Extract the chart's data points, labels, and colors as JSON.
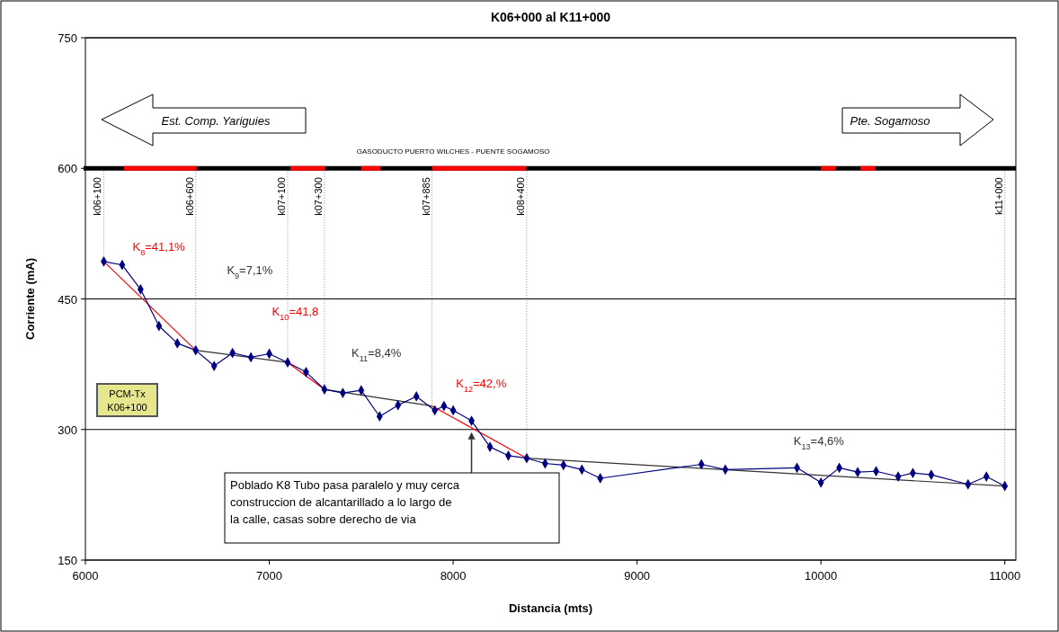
{
  "chart_data": {
    "type": "line",
    "title": "K06+000 al K11+000",
    "xlabel": "Distancia (mts)",
    "ylabel": "Corriente (mA)",
    "xlim": [
      6000,
      11060
    ],
    "xticks": [
      6000,
      7000,
      8000,
      9000,
      10000,
      11000
    ],
    "ylim": [
      150,
      750
    ],
    "yticks": [
      150,
      300,
      450,
      600,
      750
    ],
    "grid": "y",
    "marker": "diamond",
    "line_style": "solid",
    "series": [
      {
        "color": "#000080",
        "x": [
          6100,
          6200,
          6300,
          6400,
          6500,
          6600,
          6700,
          6800,
          6900,
          7000,
          7100,
          7200,
          7300,
          7400,
          7500,
          7600,
          7700,
          7800,
          7900,
          7950,
          8000,
          8100,
          8200,
          8300,
          8400,
          8500,
          8600,
          8700,
          8800,
          9350,
          9480,
          9870,
          10000,
          10100,
          10200,
          10300,
          10420,
          10500,
          10600,
          10800,
          10900,
          11000
        ],
        "values": [
          493,
          489,
          461,
          419,
          399,
          391,
          373,
          388,
          383,
          387,
          377,
          366,
          346,
          342,
          345,
          315,
          328,
          338,
          322,
          327,
          322,
          310,
          280,
          270,
          267,
          261,
          259,
          254,
          244,
          260,
          254,
          256,
          239,
          256,
          251,
          252,
          246,
          250,
          248,
          237,
          246,
          235
        ]
      },
      {
        "type": "line",
        "marker": "none",
        "color": "#ff0000",
        "x": [
          6100,
          6600,
          6850,
          7100,
          7300,
          7600,
          7885,
          8400
        ],
        "values": [
          493,
          391,
          null,
          377,
          346,
          null,
          327,
          267
        ]
      },
      {
        "type": "line",
        "marker": "none",
        "color": "#333333",
        "x": [
          6600,
          7100,
          7200,
          7300,
          7885,
          8100,
          8400,
          11000
        ],
        "values": [
          391,
          377,
          null,
          346,
          327,
          null,
          267,
          235
        ]
      },
      {
        "type": "line",
        "marker": "none",
        "color": "#ff0000",
        "x": [
          6210,
          6605,
          6660,
          7115,
          7305,
          7400,
          7500,
          7605,
          7700,
          7885,
          8395,
          9000,
          10000,
          10080,
          10150,
          10215,
          10295
        ],
        "values": [
          600,
          600,
          null,
          600,
          600,
          null,
          600,
          600,
          null,
          600,
          600,
          null,
          600,
          600,
          null,
          600,
          600
        ]
      }
    ],
    "ref_lines": [
      {
        "axis": "y",
        "value": 600,
        "label": "GASODUCTO PUERTO WILCHES - PUENTE SOGAMOSO",
        "color": "#000000"
      },
      {
        "axis": "x",
        "value": 6100,
        "label": "k06+100",
        "line_style": "dotted"
      },
      {
        "axis": "x",
        "value": 6600,
        "label": "k06+600",
        "line_style": "dotted"
      },
      {
        "axis": "x",
        "value": 7100,
        "label": "k07+100",
        "line_style": "dotted"
      },
      {
        "axis": "x",
        "value": 7300,
        "label": "k07+300",
        "line_style": "dotted"
      },
      {
        "axis": "x",
        "value": 7885,
        "label": "k07+885",
        "line_style": "dotted"
      },
      {
        "axis": "x",
        "value": 8400,
        "label": "k08+400",
        "line_style": "dotted"
      },
      {
        "axis": "x",
        "value": 11000,
        "label": "k11+000",
        "line_style": "dotted"
      }
    ],
    "annotations": [
      "Est. Comp. Yariguies",
      "Pte. Sogamoso",
      "PCM-Tx K06+100",
      "K$_{8}$=41,1%",
      "K$_{9}$=7,1%",
      "K$_{10}$=41,8",
      "K$_{11}$=8,4%",
      "K$_{12}$=42,%",
      "K$_{13}$=4,6%",
      {
        "text": "Poblado K8 Tubo pasa paralelo y muy cerca construccion de alcantarillado a lo largo de la calle, casas sobre derecho de via",
        "x": 8100,
        "y": 297
      }
    ]
  }
}
